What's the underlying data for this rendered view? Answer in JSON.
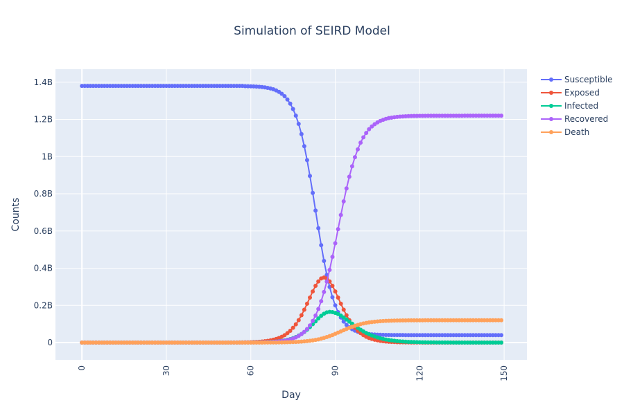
{
  "chart_data": {
    "type": "line",
    "title": "Simulation of SEIRD Model",
    "x_label": "Day",
    "y_label": "Counts",
    "xlim": [
      -9.4,
      158.1
    ],
    "xticks": [
      0,
      30,
      60,
      90,
      120,
      150
    ],
    "ylim": [
      -93000000,
      1470000000
    ],
    "yticks": [
      0,
      {
        "value": 200000000,
        "label": "0.2B"
      },
      {
        "value": 400000000,
        "label": "0.4B"
      },
      {
        "value": 600000000,
        "label": "0.6B"
      },
      {
        "value": 800000000,
        "label": "0.8B"
      },
      {
        "value": 1000000000,
        "label": "1B"
      },
      {
        "value": 1200000000,
        "label": "1.2B"
      },
      {
        "value": 1400000000,
        "label": "1.4B"
      }
    ],
    "grid": true,
    "x": [
      0,
      1,
      2,
      3,
      4,
      5,
      6,
      7,
      8,
      9,
      10,
      11,
      12,
      13,
      14,
      15,
      16,
      17,
      18,
      19,
      20,
      21,
      22,
      23,
      24,
      25,
      26,
      27,
      28,
      29,
      30,
      31,
      32,
      33,
      34,
      35,
      36,
      37,
      38,
      39,
      40,
      41,
      42,
      43,
      44,
      45,
      46,
      47,
      48,
      49,
      50,
      51,
      52,
      53,
      54,
      55,
      56,
      57,
      58,
      59,
      60,
      61,
      62,
      63,
      64,
      65,
      66,
      67,
      68,
      69,
      70,
      71,
      72,
      73,
      74,
      75,
      76,
      77,
      78,
      79,
      80,
      81,
      82,
      83,
      84,
      85,
      86,
      87,
      88,
      89,
      90,
      91,
      92,
      93,
      94,
      95,
      96,
      97,
      98,
      99,
      100,
      101,
      102,
      103,
      104,
      105,
      106,
      107,
      108,
      109,
      110,
      111,
      112,
      113,
      114,
      115,
      116,
      117,
      118,
      119,
      120,
      121,
      122,
      123,
      124,
      125,
      126,
      127,
      128,
      129,
      130,
      131,
      132,
      133,
      134,
      135,
      136,
      137,
      138,
      139,
      140,
      141,
      142,
      143,
      144,
      145,
      146,
      147,
      148,
      149
    ],
    "series": [
      {
        "name": "Susceptible",
        "color": "#636efa",
        "values": [
          1380000000.0,
          1380000000.0,
          1380000000.0,
          1380000000.0,
          1380000000.0,
          1380000000.0,
          1380000000.0,
          1380000000.0,
          1380000000.0,
          1380000000.0,
          1380000000.0,
          1380000000.0,
          1380000000.0,
          1380000000.0,
          1380000000.0,
          1380000000.0,
          1380000000.0,
          1380000000.0,
          1380000000.0,
          1380000000.0,
          1380000000.0,
          1380000000.0,
          1380000000.0,
          1380000000.0,
          1380000000.0,
          1380000000.0,
          1380000000.0,
          1380000000.0,
          1380000000.0,
          1380000000.0,
          1380000000.0,
          1380000000.0,
          1380000000.0,
          1380000000.0,
          1380000000.0,
          1380000000.0,
          1380000000.0,
          1380000000.0,
          1380000000.0,
          1380000000.0,
          1380000000.0,
          1380000000.0,
          1380000000.0,
          1380000000.0,
          1380000000.0,
          1380000000.0,
          1380000000.0,
          1380000000.0,
          1380000000.0,
          1380000000.0,
          1380000000.0,
          1380000000.0,
          1380000000.0,
          1380000000.0,
          1380000000.0,
          1380000000.0,
          1380000000.0,
          1380000000.0,
          1379000000.0,
          1378500000.0,
          1378000000.0,
          1377500000.0,
          1376700000.0,
          1375600000.0,
          1374100000.0,
          1372200000.0,
          1369700000.0,
          1366300000.0,
          1361900000.0,
          1356000000.0,
          1348000000.0,
          1338000000.0,
          1325000000.0,
          1307000000.0,
          1285000000.0,
          1256000000.0,
          1220000000.0,
          1176000000.0,
          1121000000.0,
          1056000000.0,
          981000000.0,
          896000000.0,
          805000000.0,
          710000000.0,
          615000000.0,
          524000000.0,
          439000000.0,
          364000000.0,
          299000000.0,
          244000000.0,
          200000000.0,
          164000000.0,
          135000000.0,
          113000000.0,
          95000000.0,
          82000000.0,
          71900000.0,
          64100000.0,
          58200000.0,
          53700000.0,
          50300000.0,
          47800000.0,
          45900000.0,
          44400000.0,
          43300000.0,
          42500000.0,
          41900000.0,
          41400000.0,
          41100000.0,
          40800000.0,
          40600000.0,
          40500000.0,
          40400000.0,
          40300000.0,
          40300000.0,
          40200000.0,
          40200000.0,
          40200000.0,
          40200000.0,
          40100000.0,
          40100000.0,
          40100000.0,
          40100000.0,
          40100000.0,
          40100000.0,
          40100000.0,
          40000000.0,
          40000000.0,
          40000000.0,
          40000000.0,
          40000000.0,
          40000000.0,
          40000000.0,
          40000000.0,
          40000000.0,
          40000000.0,
          40000000.0,
          40000000.0,
          40000000.0,
          40000000.0,
          40000000.0,
          40000000.0,
          40000000.0,
          40000000.0,
          40000000.0,
          40000000.0,
          40000000.0,
          40000000.0,
          40000000.0,
          40000000.0
        ]
      },
      {
        "name": "Exposed",
        "color": "#EF553B",
        "values": [
          0,
          0,
          0,
          0,
          0,
          0,
          0,
          0,
          0,
          0,
          0,
          0,
          0,
          0,
          0,
          0,
          0,
          0,
          0,
          0,
          0,
          0,
          0,
          0,
          0,
          0,
          0,
          0,
          0,
          0,
          0,
          0,
          0,
          0,
          3000.0,
          4000.0,
          5000.0,
          6000.0,
          8000.0,
          10000.0,
          13000.0,
          17000.0,
          22000.0,
          29000.0,
          37000.0,
          47000.0,
          60000.0,
          80000.0,
          100000.0,
          130000.0,
          170000.0,
          220000.0,
          280000.0,
          360000.0,
          470000.0,
          600000.0,
          770000.0,
          980000.0,
          1260000.0,
          1620000.0,
          2080000.0,
          2670000.0,
          3430000.0,
          4400000.0,
          5650000.0,
          7250000.0,
          9300000.0,
          11900000.0,
          15200000.0,
          19400000.0,
          24700000.0,
          31400000.0,
          39800000.0,
          50700000.0,
          63200000.0,
          79800000.0,
          98100000.0,
          120600000.0,
          147000000.0,
          176600000.0,
          209000000.0,
          242000000.0,
          275000000.0,
          305000000.0,
          329000000.0,
          344600000.0,
          350000000.0,
          344600000.0,
          329000000.0,
          305000000.0,
          275000000.0,
          242000000.0,
          209000000.0,
          176600000.0,
          147000000.0,
          120600000.0,
          98100000.0,
          79800000.0,
          63200000.0,
          50700000.0,
          39800000.0,
          31400000.0,
          24700000.0,
          19400000.0,
          15200000.0,
          11900000.0,
          9300000.0,
          7250000.0,
          5650000.0,
          4400000.0,
          3430000.0,
          2670000.0,
          2080000.0,
          1620000.0,
          1260000.0,
          980000.0,
          770000.0,
          600000.0,
          470000.0,
          360000.0,
          280000.0,
          220000.0,
          170000.0,
          130000.0,
          100000.0,
          80000.0,
          60000.0,
          47000.0,
          37000.0,
          29000.0,
          22000.0,
          17000.0,
          13000.0,
          10000.0,
          8000.0,
          6000.0,
          5000.0,
          4000.0,
          3000.0,
          0,
          0,
          0,
          0,
          0,
          0,
          0,
          0,
          0,
          0,
          0
        ]
      },
      {
        "name": "Infected",
        "color": "#00cc96",
        "values": [
          0,
          0,
          0,
          0,
          0,
          0,
          0,
          0,
          0,
          0,
          0,
          0,
          0,
          0,
          0,
          0,
          0,
          0,
          0,
          0,
          0,
          0,
          0,
          0,
          0,
          0,
          0,
          0,
          0,
          0,
          0,
          0,
          0,
          0,
          0,
          0,
          0,
          0,
          2500.0,
          3200.0,
          4000.0,
          5200.0,
          6700.0,
          8600.0,
          11000.0,
          14000.0,
          18000.0,
          24000.0,
          30000.0,
          39000.0,
          50000.0,
          64000.0,
          82000.0,
          105000.0,
          135000.0,
          170000.0,
          220000.0,
          290000.0,
          370000.0,
          470000.0,
          600000.0,
          770000.0,
          990000.0,
          1270000.0,
          1620000.0,
          2080000.0,
          2670000.0,
          3420000.0,
          4390000.0,
          5610000.0,
          7180000.0,
          9160000.0,
          11670000.0,
          14800000.0,
          18800000.0,
          23900000.0,
          29800000.0,
          37600000.0,
          46300000.0,
          56900000.0,
          69300000.0,
          83300000.0,
          98500000.0,
          114200000.0,
          129700000.0,
          143800000.0,
          155100000.0,
          162400000.0,
          165000000.0,
          163700000.0,
          159700000.0,
          153300000.0,
          145000000.0,
          135100000.0,
          124100000.0,
          112800000.0,
          101300000.0,
          90100000.0,
          79300000.0,
          69300000.0,
          60200000.0,
          51900000.0,
          44600000.0,
          38200000.0,
          32600000.0,
          27700000.0,
          23500000.0,
          19600000.0,
          16500000.0,
          13940000.0,
          11660000.0,
          9730000.0,
          8110000.0,
          6770000.0,
          5640000.0,
          4710000.0,
          3930000.0,
          3270000.0,
          2730000.0,
          2280000.0,
          1900000.0,
          1580000.0,
          1320000.0,
          1100000.0,
          920000.0,
          770000.0,
          640000.0,
          530000.0,
          440000.0,
          370000.0,
          310000.0,
          260000.0,
          210000.0,
          180000.0,
          150000.0,
          125000.0,
          104000.0,
          87000.0,
          72000.0,
          60000.0,
          50000.0,
          42000.0,
          35000.0,
          29000.0,
          24000.0,
          20000.0,
          17000.0,
          14000.0,
          12000.0,
          10000.0
        ]
      },
      {
        "name": "Recovered",
        "color": "#ab63fa",
        "values": [
          0,
          0,
          0,
          0,
          0,
          0,
          0,
          0,
          0,
          0,
          0,
          0,
          0,
          0,
          0,
          0,
          0,
          0,
          0,
          0,
          0,
          0,
          0,
          0,
          0,
          0,
          0,
          0,
          0,
          0,
          0,
          0,
          0,
          0,
          0,
          0,
          0,
          0,
          0,
          0,
          0,
          0,
          0,
          0,
          0,
          0,
          0,
          0,
          0,
          0,
          43000.0,
          55000.0,
          71000.0,
          91000.0,
          117000.0,
          151000.0,
          193000.0,
          248000.0,
          319000.0,
          409000.0,
          525000.0,
          675000.0,
          866000.0,
          1110000.0,
          1430000.0,
          1830000.0,
          2350000.0,
          3020000.0,
          3880000.0,
          4980000.0,
          6390000.0,
          8200000.0,
          10500000.0,
          13400000.0,
          17200000.0,
          22000000.0,
          28100000.0,
          35800000.0,
          45500000.0,
          57800000.0,
          73100000.0,
          92000000.0,
          116300000.0,
          145400000.0,
          180700000.0,
          222600000.0,
          272000000.0,
          328000000.0,
          391000000.0,
          461000000.0,
          534000000.0,
          610000000.0,
          686000000.0,
          759000000.0,
          829000000.0,
          892000000.0,
          948000000.0,
          997000000.0,
          1039000000.0,
          1075000000.0,
          1104000000.0,
          1127000000.0,
          1147000000.0,
          1162000000.0,
          1174000000.0,
          1184000000.0,
          1192000000.0,
          1198000000.0,
          1203000000.0,
          1207000000.0,
          1209500000.0,
          1211800000.0,
          1213600000.0,
          1215000000.0,
          1216100000.0,
          1217000000.0,
          1217700000.0,
          1218200000.0,
          1218600000.0,
          1218900000.0,
          1219100000.0,
          1219300000.0,
          1219500000.0,
          1219600000.0,
          1219700000.0,
          1219800000.0,
          1219900000.0,
          1219900000.0,
          1219900000.0,
          1219900000.0,
          1219900000.0,
          1219900000.0,
          1219900000.0,
          1219900000.0,
          1219900000.0,
          1219900000.0,
          1220000000.0,
          1220000000.0,
          1220000000.0,
          1220000000.0,
          1220000000.0,
          1220000000.0,
          1220000000.0,
          1220000000.0,
          1220000000.0,
          1220000000.0,
          1220000000.0,
          1220000000.0,
          1220000000.0,
          1220000000.0
        ]
      },
      {
        "name": "Death",
        "color": "#FFA15A",
        "values": [
          0,
          0,
          0,
          0,
          0,
          0,
          0,
          0,
          0,
          0,
          0,
          0,
          0,
          0,
          0,
          0,
          0,
          0,
          0,
          0,
          0,
          0,
          0,
          0,
          0,
          0,
          0,
          0,
          0,
          0,
          0,
          0,
          0,
          0,
          0,
          0,
          0,
          0,
          0,
          0,
          0,
          0,
          0,
          0,
          0,
          3500.0,
          4400.0,
          5500.0,
          6800.0,
          8600.0,
          10600.0,
          13200.0,
          16500.0,
          20700.0,
          25800.0,
          32200.0,
          40300.0,
          50200.0,
          62800.0,
          78400.0,
          97900.0,
          122000.0,
          153000.0,
          190000.0,
          238000.0,
          297000.0,
          371000.0,
          462000.0,
          577000.0,
          719000.0,
          897000.0,
          1117000.0,
          1394000.0,
          1734000.0,
          2158000.0,
          2685000.0,
          3333000.0,
          4134000.0,
          5120000.0,
          6330000.0,
          7800000.0,
          9580000.0,
          11730000.0,
          14300000.0,
          17340000.0,
          20910000.0,
          25030000.0,
          29720000.0,
          34960000.0,
          40700000.0,
          46880000.0,
          53360000.0,
          60000000.0,
          66640000.0,
          73110000.0,
          79300000.0,
          85040000.0,
          90280000.0,
          94970000.0,
          99080000.0,
          102650000.0,
          105700000.0,
          108260000.0,
          110420000.0,
          112200000.0,
          113680000.0,
          114880000.0,
          115860000.0,
          116660000.0,
          117310000.0,
          117840000.0,
          118260000.0,
          118610000.0,
          118880000.0,
          119110000.0,
          119280000.0,
          119430000.0,
          119530000.0,
          119630000.0,
          119700000.0,
          119760000.0,
          119800000.0,
          119850000.0,
          119880000.0,
          119900000.0,
          119920000.0,
          119940000.0,
          119940000.0,
          119940000.0,
          119940000.0,
          119940000.0,
          119970000.0,
          119970000.0,
          119970000.0,
          119970000.0,
          119970000.0,
          119970000.0,
          119970000.0,
          119970000.0,
          119970000.0,
          119970000.0,
          120000000.0,
          120000000.0,
          120000000.0,
          120000000.0,
          120000000.0,
          120000000.0,
          120000000.0,
          120000000.0,
          120000000.0
        ]
      }
    ]
  }
}
